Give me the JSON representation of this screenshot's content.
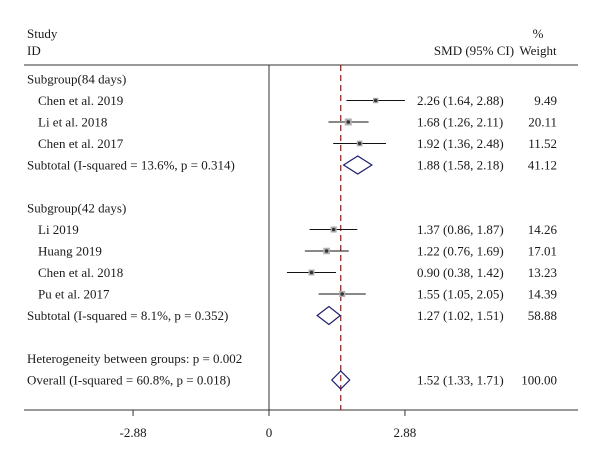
{
  "chart_data": {
    "type": "forest",
    "header": {
      "study_line1": "Study",
      "study_line2": "ID",
      "smd_col": "SMD (95% CI)",
      "weight_line1": "%",
      "weight_line2": "Weight"
    },
    "rows": [
      {
        "kind": "group",
        "label": "Subgroup(84 days)"
      },
      {
        "kind": "study",
        "label": "Chen et al. 2019",
        "est": 2.26,
        "lo": 1.64,
        "hi": 2.88,
        "ci_text": "2.26 (1.64, 2.88)",
        "weight": "9.49"
      },
      {
        "kind": "study",
        "label": "Li et al. 2018",
        "est": 1.68,
        "lo": 1.26,
        "hi": 2.11,
        "ci_text": "1.68 (1.26, 2.11)",
        "weight": "20.11"
      },
      {
        "kind": "study",
        "label": "Chen et al. 2017",
        "est": 1.92,
        "lo": 1.36,
        "hi": 2.48,
        "ci_text": "1.92 (1.36, 2.48)",
        "weight": "11.52"
      },
      {
        "kind": "subtotal",
        "label": "Subtotal (I-squared = 13.6%, p = 0.314)",
        "est": 1.88,
        "lo": 1.58,
        "hi": 2.18,
        "ci_text": "1.88 (1.58, 2.18)",
        "weight": "41.12"
      },
      {
        "kind": "blank"
      },
      {
        "kind": "group",
        "label": "Subgroup(42 days)"
      },
      {
        "kind": "study",
        "label": "Li 2019",
        "est": 1.37,
        "lo": 0.86,
        "hi": 1.87,
        "ci_text": "1.37 (0.86, 1.87)",
        "weight": "14.26"
      },
      {
        "kind": "study",
        "label": "Huang 2019",
        "est": 1.22,
        "lo": 0.76,
        "hi": 1.69,
        "ci_text": "1.22 (0.76, 1.69)",
        "weight": "17.01"
      },
      {
        "kind": "study",
        "label": "Chen et al. 2018",
        "est": 0.9,
        "lo": 0.38,
        "hi": 1.42,
        "ci_text": "0.90 (0.38, 1.42)",
        "weight": "13.23"
      },
      {
        "kind": "study",
        "label": "Pu et al. 2017",
        "est": 1.55,
        "lo": 1.05,
        "hi": 2.05,
        "ci_text": "1.55 (1.05, 2.05)",
        "weight": "14.39"
      },
      {
        "kind": "subtotal",
        "label": "Subtotal (I-squared = 8.1%, p = 0.352)",
        "est": 1.27,
        "lo": 1.02,
        "hi": 1.51,
        "ci_text": "1.27 (1.02, 1.51)",
        "weight": "58.88"
      },
      {
        "kind": "blank"
      },
      {
        "kind": "group",
        "label": "Heterogeneity between groups: p = 0.002"
      },
      {
        "kind": "subtotal",
        "label": "Overall (I-squared = 60.8%, p = 0.018)",
        "est": 1.52,
        "lo": 1.33,
        "hi": 1.71,
        "ci_text": "1.52 (1.33, 1.71)",
        "weight": "100.00"
      }
    ],
    "xaxis": {
      "ticks": [
        -2.88,
        0,
        2.88
      ],
      "tick_labels": [
        "-2.88",
        "0",
        "2.88"
      ],
      "range": [
        -2.88,
        2.88
      ]
    },
    "null_line": 0,
    "overall_line": 1.52,
    "colors": {
      "overall_line": "#8b1a1a",
      "diamond": "#1f1f6e",
      "marker": "#333333",
      "ci": "#111111",
      "frame": "#333333"
    }
  }
}
